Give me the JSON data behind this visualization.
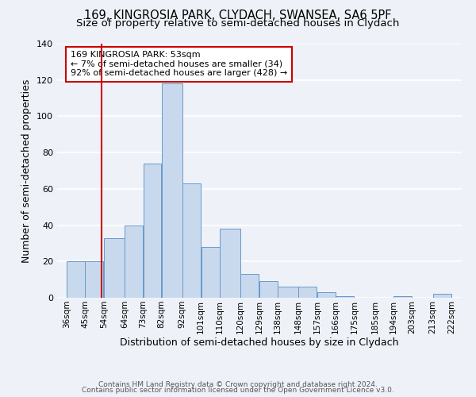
{
  "title": "169, KINGROSIA PARK, CLYDACH, SWANSEA, SA6 5PF",
  "subtitle": "Size of property relative to semi-detached houses in Clydach",
  "xlabel": "Distribution of semi-detached houses by size in Clydach",
  "ylabel": "Number of semi-detached properties",
  "bar_left_edges": [
    36,
    45,
    54,
    64,
    73,
    82,
    92,
    101,
    110,
    120,
    129,
    138,
    148,
    157,
    166,
    175,
    185,
    194,
    203,
    213
  ],
  "bar_heights": [
    20,
    20,
    33,
    40,
    74,
    118,
    63,
    28,
    38,
    13,
    9,
    6,
    6,
    3,
    1,
    0,
    0,
    1,
    0,
    2
  ],
  "bar_widths": [
    9,
    9,
    10,
    9,
    9,
    10,
    9,
    9,
    10,
    9,
    9,
    10,
    9,
    9,
    9,
    10,
    9,
    9,
    10,
    9
  ],
  "xlim_left": 31.5,
  "xlim_right": 227,
  "ylim": [
    0,
    140
  ],
  "bar_color": "#c9d9ed",
  "bar_edge_color": "#6699cc",
  "red_line_x": 53,
  "annotation_text": "169 KINGROSIA PARK: 53sqm\n← 7% of semi-detached houses are smaller (34)\n92% of semi-detached houses are larger (428) →",
  "annotation_box_color": "#ffffff",
  "annotation_box_edge": "#cc0000",
  "tick_labels": [
    "36sqm",
    "45sqm",
    "54sqm",
    "64sqm",
    "73sqm",
    "82sqm",
    "92sqm",
    "101sqm",
    "110sqm",
    "120sqm",
    "129sqm",
    "138sqm",
    "148sqm",
    "157sqm",
    "166sqm",
    "175sqm",
    "185sqm",
    "194sqm",
    "203sqm",
    "213sqm",
    "222sqm"
  ],
  "tick_positions": [
    36,
    45,
    54,
    64,
    73,
    82,
    92,
    101,
    110,
    120,
    129,
    138,
    148,
    157,
    166,
    175,
    185,
    194,
    203,
    213,
    222
  ],
  "footer1": "Contains HM Land Registry data © Crown copyright and database right 2024.",
  "footer2": "Contains public sector information licensed under the Open Government Licence v3.0.",
  "background_color": "#eef2f8",
  "grid_color": "#ffffff",
  "title_fontsize": 10.5,
  "subtitle_fontsize": 9.5,
  "axis_label_fontsize": 9,
  "tick_fontsize": 7.5,
  "footer_fontsize": 6.5
}
